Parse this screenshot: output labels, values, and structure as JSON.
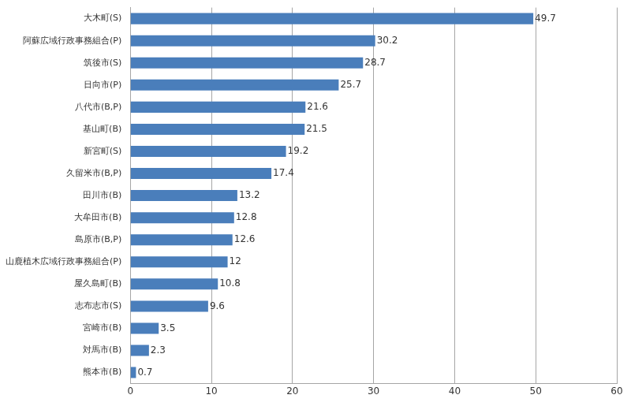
{
  "chart_data": {
    "type": "bar",
    "orientation": "horizontal",
    "categories": [
      "大木町(S)",
      "阿蘇広域行政事務組合(P)",
      "筑後市(S)",
      "日向市(P)",
      "八代市(B,P)",
      "基山町(B)",
      "新宮町(S)",
      "久留米市(B,P)",
      "田川市(B)",
      "大牟田市(B)",
      "島原市(B,P)",
      "山鹿植木広域行政事務組合(P)",
      "屋久島町(B)",
      "志布志市(S)",
      "宮崎市(B)",
      "対馬市(B)",
      "熊本市(B)"
    ],
    "values": [
      49.7,
      30.2,
      28.7,
      25.7,
      21.6,
      21.5,
      19.2,
      17.4,
      13.2,
      12.8,
      12.6,
      12,
      10.8,
      9.6,
      3.5,
      2.3,
      0.7
    ],
    "color": "#4a7ebb",
    "xlim": [
      0,
      60
    ],
    "xticks": [
      0,
      10,
      20,
      30,
      40,
      50,
      60
    ],
    "grid": true,
    "data_labels": true
  }
}
